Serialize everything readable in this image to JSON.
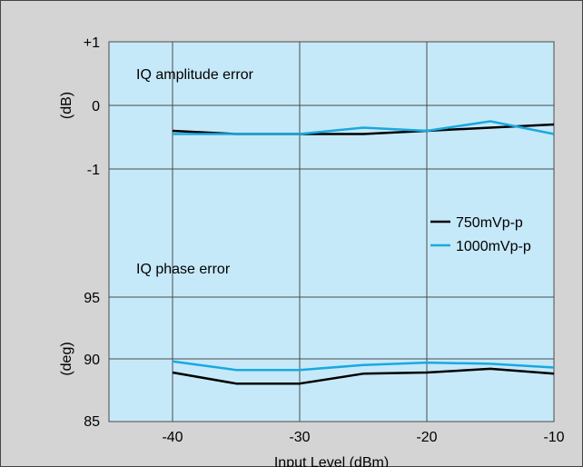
{
  "colors": {
    "page_background": "#d4d4d4",
    "plot_background": "#c6e9f9",
    "series_750": "#000000",
    "series_1000": "#1aa8e0"
  },
  "chart_data": {
    "type": "line",
    "grid": true,
    "x_axis": {
      "label": "Input Level (dBm)",
      "range": [
        -45,
        -10
      ],
      "ticks": [
        -40,
        -30,
        -20,
        -10
      ],
      "tick_labels": [
        "-40",
        "-30",
        "-20",
        "-10"
      ]
    },
    "legend": {
      "placement": "right",
      "entries": [
        "750mVp-p",
        "1000mVp-p"
      ]
    },
    "panels": [
      {
        "annotation": "IQ amplitude error",
        "ylabel": "(dB)",
        "ylim": [
          -1,
          1
        ],
        "ticks": [
          1,
          0,
          -1
        ],
        "tick_labels": [
          "+1",
          "0",
          "-1"
        ],
        "x": [
          -40,
          -35,
          -30,
          -25,
          -20,
          -15,
          -10
        ],
        "series": [
          {
            "name": "750mVp-p",
            "values": [
              -0.4,
              -0.45,
              -0.45,
              -0.45,
              -0.4,
              -0.35,
              -0.3
            ]
          },
          {
            "name": "1000mVp-p",
            "values": [
              -0.45,
              -0.45,
              -0.45,
              -0.35,
              -0.4,
              -0.25,
              -0.45
            ]
          }
        ]
      },
      {
        "annotation": "IQ phase error",
        "ylabel": "(deg)",
        "ylim": [
          85,
          95
        ],
        "ticks": [
          95,
          90,
          85
        ],
        "tick_labels": [
          "95",
          "90",
          "85"
        ],
        "x": [
          -40,
          -35,
          -30,
          -25,
          -20,
          -15,
          -10
        ],
        "series": [
          {
            "name": "750mVp-p",
            "values": [
              88.9,
              88.0,
              88.0,
              88.8,
              88.9,
              89.2,
              88.8
            ]
          },
          {
            "name": "1000mVp-p",
            "values": [
              89.8,
              89.1,
              89.1,
              89.5,
              89.7,
              89.6,
              89.3
            ]
          }
        ]
      }
    ]
  }
}
